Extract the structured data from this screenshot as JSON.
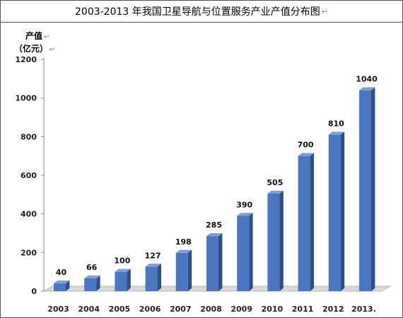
{
  "title": "2003-2013 年我国卫星导航与位置服务产业产值分布图",
  "return_mark": "↵",
  "y_unit_line1": "产值",
  "y_unit_line2": "（亿元）",
  "colors": {
    "bar_front": "#4A77C0",
    "bar_side": "#2D4F8E",
    "bar_top": "#7E9FD6",
    "floor": "#d9d9d9",
    "axis": "#888888"
  },
  "chart_data": {
    "type": "bar",
    "title": "2003-2013 年我国卫星导航与位置服务产业产值分布图",
    "ylabel": "产值（亿元）",
    "xlabel": "",
    "categories": [
      "2003",
      "2004",
      "2005",
      "2006",
      "2007",
      "2008",
      "2009",
      "2010",
      "2011",
      "2012",
      "2013"
    ],
    "values": [
      40,
      66,
      100,
      127,
      198,
      285,
      390,
      505,
      700,
      810,
      1040
    ],
    "ylim": [
      0,
      1200
    ],
    "yticks": [
      0,
      200,
      400,
      600,
      800,
      1000,
      1200
    ],
    "data_labels": true,
    "grid": false,
    "last_category_suffix": "."
  }
}
